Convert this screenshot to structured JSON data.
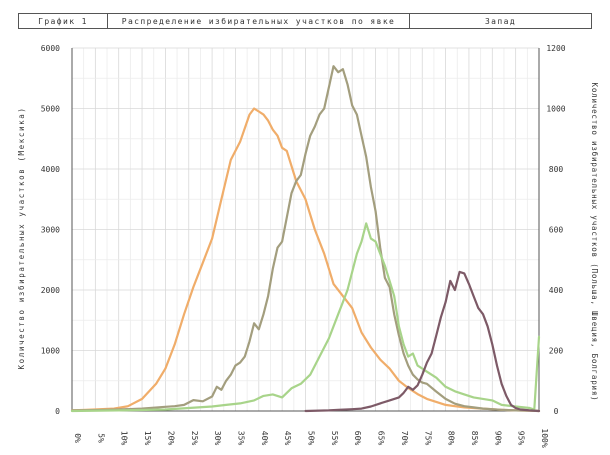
{
  "header": {
    "label": "График 1",
    "title": "Распределение избирательных участков по явке",
    "region": "Запад"
  },
  "chart_data": {
    "type": "line",
    "title": "Распределение избирательных участков по явке",
    "ylabel_left": "Количество избирательных участков (Мексика)",
    "ylabel_right": "Количество избирательных участков (Польша, Швеция, Болгария)",
    "xlim": [
      0,
      100
    ],
    "ylim_left": [
      0,
      6000
    ],
    "ylim_right": [
      0,
      1200
    ],
    "y_ticks_left": [
      "0",
      "1000",
      "2000",
      "3000",
      "4000",
      "5000",
      "6000"
    ],
    "y_ticks_right": [
      "0",
      "200",
      "400",
      "600",
      "800",
      "1000",
      "1200"
    ],
    "x_ticks": [
      "0%",
      "5%",
      "10%",
      "15%",
      "20%",
      "25%",
      "30%",
      "35%",
      "40%",
      "45%",
      "50%",
      "55%",
      "60%",
      "65%",
      "70%",
      "75%",
      "80%",
      "85%",
      "90%",
      "95%",
      "100%"
    ],
    "grid": true,
    "series": [
      {
        "axis": "left",
        "color": "#f0ad6a",
        "x": [
          0,
          3,
          6,
          9,
          12,
          15,
          18,
          20,
          22,
          24,
          26,
          28,
          30,
          32,
          34,
          36,
          38,
          39,
          40,
          41,
          42,
          43,
          44,
          45,
          46,
          47,
          48,
          50,
          52,
          54,
          55,
          56,
          58,
          60,
          62,
          64,
          66,
          68,
          70,
          72,
          74,
          76,
          78,
          80,
          82,
          84,
          86,
          88,
          90,
          92,
          95,
          98,
          100
        ],
        "y": [
          10,
          20,
          30,
          40,
          80,
          200,
          450,
          700,
          1100,
          1600,
          2050,
          2450,
          2850,
          3500,
          4150,
          4450,
          4900,
          5000,
          4950,
          4900,
          4800,
          4650,
          4550,
          4350,
          4300,
          4050,
          3800,
          3500,
          3000,
          2600,
          2350,
          2100,
          1900,
          1700,
          1300,
          1050,
          850,
          700,
          500,
          380,
          280,
          200,
          150,
          100,
          80,
          60,
          50,
          40,
          30,
          20,
          10,
          5,
          0
        ]
      },
      {
        "axis": "left",
        "color": "#a39e7e",
        "x": [
          0,
          5,
          10,
          15,
          20,
          22,
          24,
          26,
          28,
          30,
          31,
          32,
          33,
          34,
          35,
          36,
          37,
          38,
          39,
          40,
          41,
          42,
          43,
          44,
          45,
          46,
          47,
          48,
          49,
          50,
          51,
          52,
          53,
          54,
          55,
          56,
          57,
          58,
          59,
          60,
          61,
          62,
          63,
          64,
          65,
          66,
          67,
          68,
          69,
          70,
          71,
          72,
          73,
          74,
          75,
          76,
          78,
          80,
          82,
          84,
          86,
          88,
          90,
          92,
          95,
          98,
          100
        ],
        "y": [
          10,
          15,
          25,
          40,
          70,
          80,
          100,
          180,
          160,
          240,
          400,
          350,
          500,
          600,
          750,
          800,
          900,
          1150,
          1450,
          1350,
          1600,
          1900,
          2350,
          2700,
          2800,
          3200,
          3600,
          3800,
          3900,
          4250,
          4550,
          4700,
          4900,
          5000,
          5350,
          5700,
          5600,
          5650,
          5400,
          5050,
          4900,
          4550,
          4200,
          3700,
          3300,
          2700,
          2200,
          2050,
          1600,
          1250,
          950,
          750,
          600,
          520,
          470,
          450,
          320,
          200,
          120,
          80,
          60,
          40,
          30,
          20,
          10,
          5,
          0
        ]
      },
      {
        "axis": "right",
        "color": "#a8d48a",
        "x": [
          0,
          10,
          20,
          25,
          30,
          33,
          36,
          39,
          41,
          43,
          45,
          47,
          49,
          51,
          53,
          55,
          57,
          58,
          59,
          60,
          61,
          62,
          63,
          64,
          65,
          66,
          67,
          68,
          69,
          70,
          71,
          72,
          73,
          74,
          75,
          76,
          77,
          78,
          80,
          82,
          84,
          86,
          88,
          90,
          92,
          95,
          98,
          99,
          100
        ],
        "y": [
          0,
          2,
          5,
          10,
          15,
          20,
          25,
          35,
          50,
          55,
          45,
          75,
          90,
          120,
          180,
          240,
          320,
          360,
          400,
          460,
          520,
          560,
          620,
          570,
          560,
          520,
          480,
          430,
          380,
          280,
          220,
          180,
          190,
          150,
          140,
          130,
          120,
          110,
          80,
          65,
          55,
          45,
          40,
          35,
          20,
          15,
          10,
          5,
          245
        ]
      },
      {
        "axis": "right",
        "color": "#7d5a67",
        "x": [
          50,
          55,
          57,
          60,
          62,
          64,
          66,
          68,
          70,
          71,
          72,
          73,
          74,
          75,
          76,
          77,
          78,
          79,
          80,
          81,
          82,
          83,
          84,
          85,
          86,
          87,
          88,
          89,
          90,
          91,
          92,
          93,
          94,
          95,
          96,
          98,
          100
        ],
        "y": [
          0,
          2,
          4,
          6,
          8,
          15,
          25,
          35,
          45,
          60,
          80,
          70,
          85,
          120,
          160,
          190,
          250,
          310,
          360,
          430,
          400,
          460,
          455,
          420,
          380,
          340,
          320,
          280,
          220,
          150,
          90,
          50,
          20,
          10,
          5,
          2,
          0
        ]
      }
    ]
  }
}
